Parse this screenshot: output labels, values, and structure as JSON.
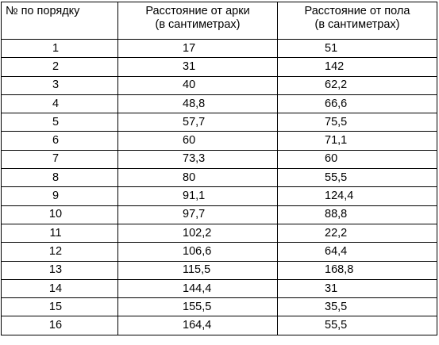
{
  "table": {
    "headers": {
      "col1": "№ по порядку",
      "col2_line1": "Расстояние от арки",
      "col2_line2": "(в сантиметрах)",
      "col3_line1": "Расстояние от пола",
      "col3_line2": "(в сантиметрах)"
    },
    "rows": [
      {
        "num": "1",
        "arch": "17",
        "floor": "51"
      },
      {
        "num": "2",
        "arch": "31",
        "floor": "142"
      },
      {
        "num": "3",
        "arch": "40",
        "floor": "62,2"
      },
      {
        "num": "4",
        "arch": "48,8",
        "floor": "66,6"
      },
      {
        "num": "5",
        "arch": "57,7",
        "floor": "75,5"
      },
      {
        "num": "6",
        "arch": "60",
        "floor": "71,1"
      },
      {
        "num": "7",
        "arch": "73,3",
        "floor": "60"
      },
      {
        "num": "8",
        "arch": "80",
        "floor": "55,5"
      },
      {
        "num": "9",
        "arch": "91,1",
        "floor": "124,4"
      },
      {
        "num": "10",
        "arch": "97,7",
        "floor": "88,8"
      },
      {
        "num": "11",
        "arch": "102,2",
        "floor": "22,2"
      },
      {
        "num": "12",
        "arch": "106,6",
        "floor": "64,4"
      },
      {
        "num": "13",
        "arch": "115,5",
        "floor": "168,8"
      },
      {
        "num": "14",
        "arch": "144,4",
        "floor": "31"
      },
      {
        "num": "15",
        "arch": "155,5",
        "floor": "35,5"
      },
      {
        "num": "16",
        "arch": "164,4",
        "floor": "55,5"
      }
    ]
  }
}
